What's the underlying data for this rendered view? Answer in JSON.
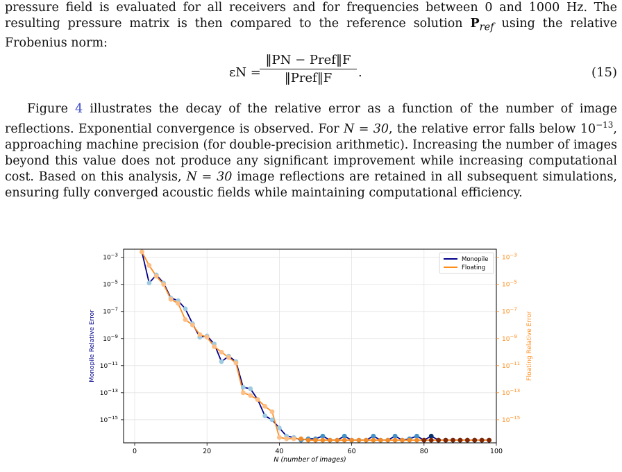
{
  "paragraphs": {
    "p1": [
      "pressure field is evaluated for all receivers and for frequencies between 0 and 1000 Hz. The resulting pressure matrix is then compared to the reference solution ",
      "P",
      "ref",
      " using the relative Frobenius norm:"
    ],
    "equation": {
      "lhs": "εN =",
      "numerator": "‖PN − Pref‖F",
      "denominator": "‖Pref‖F",
      "trail": ".",
      "number": "(15)"
    },
    "p2": {
      "a": "Figure ",
      "ref": "4",
      "b": " illustrates the decay of the relative error as a function of the number of image reflections. Exponential convergence is observed. For ",
      "n30": "N = 30",
      "c": ", the relative error falls below ",
      "ten": "10",
      "exp": "−13",
      "d": ", approaching machine precision (for double-precision arithmetic). Increasing the number of images beyond this value does not produce any significant improvement while increasing computational cost. Based on this analysis, ",
      "n30b": "N = 30",
      "e": " image reflections are retained in all subsequent simulations, ensuring fully converged acoustic fields while maintaining computational efficiency."
    }
  },
  "chart_data": {
    "type": "line",
    "xlabel": "N (number of images)",
    "ylabel_left": "Monopile Relative Error",
    "ylabel_right": "Floating Relative Error",
    "xlim": [
      0,
      100
    ],
    "x_ticks": [
      0,
      20,
      40,
      60,
      80,
      100
    ],
    "y_log_exponents": [
      -3,
      -5,
      -7,
      -9,
      -11,
      -13,
      -15
    ],
    "y_exp_range": [
      -16.7,
      -2.4
    ],
    "grid": true,
    "legend_position": "top-right",
    "series": [
      {
        "name": "Monopile",
        "line_color": "#00008b",
        "marker_colors": [
          "#9ecae1",
          "#4292c6",
          "#08306b"
        ],
        "x": [
          2,
          4,
          6,
          8,
          10,
          12,
          14,
          16,
          18,
          20,
          22,
          24,
          26,
          28,
          30,
          32,
          34,
          36,
          38,
          40,
          42,
          44,
          46,
          48,
          50,
          52,
          54,
          56,
          58,
          60,
          62,
          64,
          66,
          68,
          70,
          72,
          74,
          76,
          78,
          80,
          82,
          84,
          86,
          88,
          90,
          92,
          94,
          96,
          98
        ],
        "y_exp": [
          -2.6,
          -4.9,
          -4.3,
          -4.9,
          -6.0,
          -6.2,
          -6.8,
          -7.9,
          -8.9,
          -8.8,
          -9.4,
          -10.7,
          -10.3,
          -10.7,
          -12.6,
          -12.7,
          -13.5,
          -14.7,
          -15.0,
          -15.6,
          -16.2,
          -16.3,
          -16.5,
          -16.4,
          -16.4,
          -16.2,
          -16.5,
          -16.5,
          -16.2,
          -16.5,
          -16.5,
          -16.5,
          -16.2,
          -16.5,
          -16.5,
          -16.2,
          -16.5,
          -16.4,
          -16.2,
          -16.5,
          -16.2,
          -16.5,
          -16.5,
          -16.5,
          -16.5,
          -16.5,
          -16.5,
          -16.5,
          -16.5
        ]
      },
      {
        "name": "Floating",
        "line_color": "#ff8c1a",
        "marker_colors": [
          "#fdbe85",
          "#f08c2a",
          "#7f2704"
        ],
        "x": [
          2,
          4,
          6,
          8,
          10,
          12,
          14,
          16,
          18,
          20,
          22,
          24,
          26,
          28,
          30,
          32,
          34,
          36,
          38,
          40,
          42,
          44,
          46,
          48,
          50,
          52,
          54,
          56,
          58,
          60,
          62,
          64,
          66,
          68,
          70,
          72,
          74,
          76,
          78,
          80,
          82,
          84,
          86,
          88,
          90,
          92,
          94,
          96,
          98
        ],
        "y_exp": [
          -2.6,
          -3.6,
          -4.4,
          -5.0,
          -6.1,
          -6.4,
          -7.6,
          -8.0,
          -8.7,
          -8.9,
          -9.6,
          -10.0,
          -10.4,
          -10.8,
          -13.0,
          -13.2,
          -13.5,
          -14.0,
          -14.4,
          -16.3,
          -16.4,
          -16.4,
          -16.4,
          -16.5,
          -16.5,
          -16.5,
          -16.5,
          -16.5,
          -16.5,
          -16.5,
          -16.5,
          -16.5,
          -16.5,
          -16.5,
          -16.5,
          -16.5,
          -16.5,
          -16.5,
          -16.5,
          -16.5,
          -16.5,
          -16.5,
          -16.5,
          -16.5,
          -16.5,
          -16.5,
          -16.5,
          -16.5,
          -16.5
        ]
      }
    ]
  }
}
